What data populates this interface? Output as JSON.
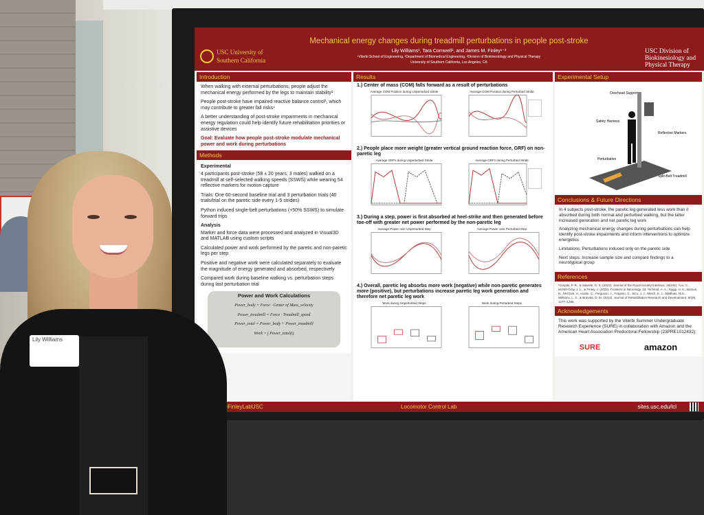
{
  "poster": {
    "title": "Mechanical energy changes during treadmill perturbations in people post-stroke",
    "authors": "Lily Williams¹, Tara Cornwell², and James M. Finley¹⁻³",
    "affiliations": "¹Viterbi School of Engineering, ²Department of Biomedical Engineering, ³Division of Biokinesiology and Physical Therapy",
    "university": "University of Southern California, Los Angeles, CA",
    "logo_left": "USC University of Southern California",
    "logo_right": "USC Division of Biokinesiology and Physical Therapy",
    "introduction": {
      "heading": "Introduction",
      "bullets": [
        "When walking with external perturbations, people adjust the mechanical energy performed by the legs to maintain stability¹",
        "People post-stroke have impaired reactive balance control³, which may contribute to greater fall risks⁴",
        "A better understanding of post-stroke impairments in mechanical energy regulation could help identify future rehabilitation priorities or assistive devices"
      ],
      "goal": "Goal: Evaluate how people post-stroke modulate mechanical power and work during perturbations"
    },
    "methods": {
      "heading": "Methods",
      "experimental_label": "Experimental",
      "items": [
        "4 participants post-stroke (58 ± 20 years, 3 males) walked on a treadmill at self-selected walking speeds (SSWS) while wearing 54 reflective markers for motion capture",
        "Trials: One 60-second baseline trial and 3 perturbation trials (40 trials/trial on the paretic side every 1-5 strides)",
        "Python induced single-belt perturbations (+50% SSWS) to simulate forward trips"
      ],
      "analysis_label": "Analysis",
      "analysis_items": [
        "Marker and force data were processed and analyzed in Visual3D and MATLAB using custom scripts",
        "Calculated power and work performed by the paretic and non-paretic legs per step",
        "Positive and negative work were calculated separately to evaluate the magnitude of energy generated and absorbed, respectively",
        "Compared work during baseline walking vs. perturbation steps during last perturbation trial"
      ],
      "eq_title": "Power and Work Calculations",
      "equations": [
        "Power_body = Force · Center of Mass_velocity",
        "Power_treadmill = Force · Treadmill_speed",
        "Power_total = Power_body + Power_treadmill",
        "Work = ∫ Power_total(t)"
      ]
    },
    "results": {
      "heading": "Results",
      "finding1": "1.) Center of mass (COM) falls forward as a result of perturbations",
      "finding2": "2.) People place more weight (greater vertical ground reaction force, GRF) on non-paretic leg",
      "finding3": "3.) During a step, power is first absorbed at heel-strike and then generated before toe-off with greater net power performed by the non-paretic leg",
      "finding4": "4.) Overall, paretic leg absorbs more work (negative) while non-paretic generates more (positive), but perturbations increase paretic leg work generation and therefore net paretic leg work",
      "plot_titles": [
        "Average COM Position during Unperturbed Stride",
        "Average COM Position during Perturbed Stride",
        "Average GRFs during Unperturbed Stride",
        "Average GRFs during Perturbed Stride",
        "Average Power over Unperturbed Step",
        "Average Power over Perturbed Step",
        "Work during Unperturbed Steps",
        "Work during Perturbed Steps"
      ]
    },
    "setup": {
      "heading": "Experimental Setup",
      "labels": [
        "Overhead Support",
        "Safety Harness",
        "Reflective Markers",
        "Perturbation",
        "Split-Belt Treadmill"
      ]
    },
    "conclusions": {
      "heading": "Conclusions & Future Directions",
      "bullets": [
        "In 4 subjects post-stroke, the paretic leg generated less work than it absorbed during both normal and perturbed walking, but the latter increased generation and net paretic leg work",
        "Analyzing mechanical energy changes during perturbations can help identify post-stroke impairments and inform interventions to optimize energetics",
        "Limitations: Perturbations induced only on the paretic side",
        "Next steps: Increase sample size and compare findings to a neurotypical group"
      ]
    },
    "references": {
      "heading": "References",
      "text": "¹Golyski, P. R., & Sawicki, G. S. (2022). Journal of the Royal Society Interface, 19(191). ²Liu, C., McNitt-Gray, J. L., & Finley, J. (2022). Frontiers in Neurology, 13. ³Schmid, A. A., Nyggi, H. K., Bamus, N., McClain, V., Austin, C., Ferguson, J., Fragoso, C., Sico, J. J., Miech, E. J., Matthias, M.S., Williams, L. S., & Bravata, D. M. (2013). Journal of Rehabilitation Research and Development, 50(9), 1277–1286."
    },
    "acknowledgements": {
      "heading": "Acknowledgements",
      "text": "This work was supported by the Viterbi Summer Undergraduate Research Experience (SURE) in collaboration with Amazon and the American Heart Association Predoctoral Fellowship (23PRE1012432)",
      "sponsor1": "SURE",
      "sponsor2": "amazon"
    },
    "footer": {
      "handle": "@FinleyLabUSC",
      "lab": "Locomotor Control Lab",
      "site": "sites.usc.edu/lcl"
    }
  },
  "name_tag": "Lily Williams"
}
